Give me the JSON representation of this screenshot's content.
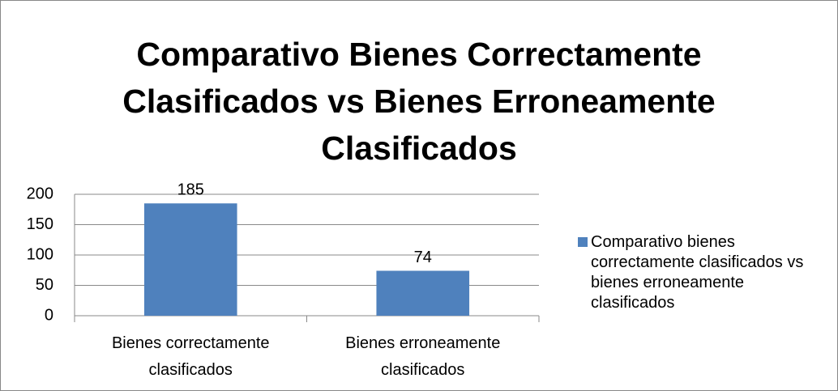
{
  "chart_data": {
    "type": "bar",
    "title": "Comparativo Bienes Correctamente Clasificados vs Bienes Erroneamente Clasificados",
    "categories": [
      "Bienes correctamente clasificados",
      "Bienes erroneamente clasificados"
    ],
    "series": [
      {
        "name": "Comparativo bienes correctamente clasificados vs bienes erroneamente clasificados",
        "color": "#4f81bd",
        "values": [
          185,
          74
        ]
      }
    ],
    "ylim": [
      0,
      200
    ],
    "yticks": [
      0,
      50,
      100,
      150,
      200
    ],
    "grid": true,
    "legend": "right"
  }
}
